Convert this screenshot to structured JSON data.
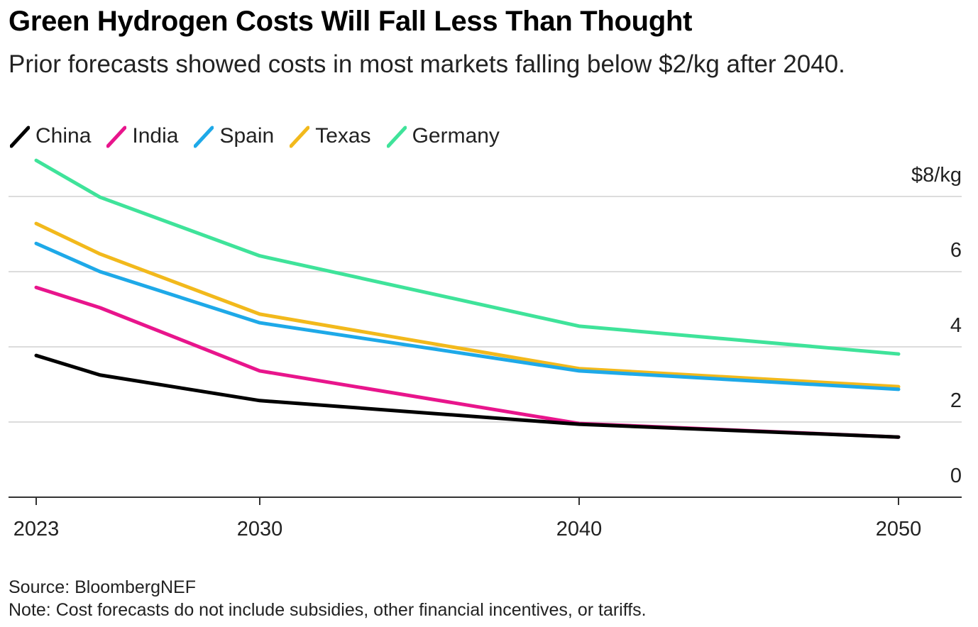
{
  "title": "Green Hydrogen Costs Will Fall Less Than Thought",
  "subtitle": "Prior forecasts showed costs in most markets falling below $2/kg after 2040.",
  "footer": {
    "source": "Source: BloombergNEF",
    "note": "Note: Cost forecasts do not include subsidies, other financial incentives, or tariffs."
  },
  "chart_data": {
    "type": "line",
    "x": [
      2023,
      2025,
      2030,
      2040,
      2050
    ],
    "xticks": [
      "2023",
      "2030",
      "2040",
      "2050"
    ],
    "yticks": [
      "0",
      "2",
      "4",
      "6",
      "$8/kg"
    ],
    "ylim": [
      0,
      8
    ],
    "xlim": [
      2022,
      2052
    ],
    "grid": true,
    "legend": "top-left",
    "series": [
      {
        "name": "China",
        "color": "#000000",
        "values": [
          3.77,
          3.25,
          2.57,
          1.94,
          1.6
        ]
      },
      {
        "name": "India",
        "color": "#e8158c",
        "values": [
          5.58,
          5.04,
          3.36,
          1.96,
          1.6
        ]
      },
      {
        "name": "Spain",
        "color": "#1ea9e8",
        "values": [
          6.75,
          6.0,
          4.64,
          3.36,
          2.87
        ]
      },
      {
        "name": "Texas",
        "color": "#f2b91c",
        "values": [
          7.28,
          6.47,
          4.87,
          3.42,
          2.94
        ]
      },
      {
        "name": "Germany",
        "color": "#3fe39a",
        "values": [
          8.96,
          7.98,
          6.42,
          4.55,
          3.81
        ]
      }
    ]
  }
}
